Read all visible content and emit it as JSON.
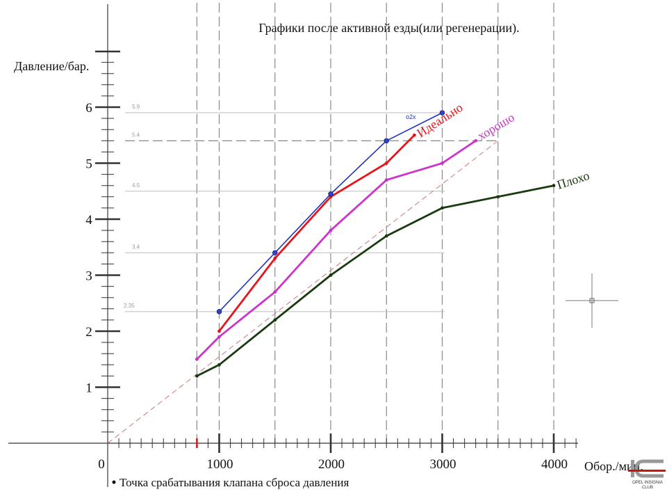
{
  "chart_data": {
    "type": "line",
    "title": "Графики после активной езды(или регенерации).",
    "ylabel": "Давление/бар.",
    "xlabel": "Обор./мин.",
    "xlim": [
      0,
      4000
    ],
    "ylim": [
      0,
      7
    ],
    "x_ticks": [
      {
        "value": 0,
        "label": "0"
      },
      {
        "value": 1000,
        "label": "1000"
      },
      {
        "value": 2000,
        "label": "2000"
      },
      {
        "value": 3000,
        "label": "3000"
      },
      {
        "value": 4000,
        "label": "4000"
      }
    ],
    "y_ticks": [
      {
        "value": 1,
        "label": "1"
      },
      {
        "value": 2,
        "label": "2"
      },
      {
        "value": 3,
        "label": "3"
      },
      {
        "value": 4,
        "label": "4"
      },
      {
        "value": 5,
        "label": "5"
      },
      {
        "value": 6,
        "label": "6"
      }
    ],
    "vertical_gridlines": [
      800,
      1000,
      1500,
      2000,
      2500,
      3000,
      3500,
      4000
    ],
    "reference_levels": [
      {
        "value": 5.9,
        "label": "5.9"
      },
      {
        "value": 5.4,
        "label": "5.4"
      },
      {
        "value": 4.5,
        "label": "4.5"
      },
      {
        "value": 3.4,
        "label": "3.4"
      },
      {
        "value": 2.35,
        "label": "2.35"
      }
    ],
    "diagonal_reference": {
      "from": [
        0,
        0
      ],
      "to": [
        3500,
        5.4
      ],
      "color": "#cc7777"
    },
    "series": [
      {
        "name": "Идеально",
        "color": "#e8141c",
        "x": [
          1000,
          1500,
          2000,
          2500,
          2750
        ],
        "y": [
          2.0,
          3.3,
          4.4,
          5.0,
          5.5
        ]
      },
      {
        "name": "хорошо",
        "color": "#cc33cc",
        "x": [
          800,
          1000,
          1500,
          2000,
          2500,
          3000,
          3300
        ],
        "y": [
          1.5,
          1.9,
          2.7,
          3.8,
          4.7,
          5.0,
          5.4
        ]
      },
      {
        "name": "Плохо",
        "color": "#1a3a10",
        "x": [
          800,
          1000,
          1500,
          2000,
          2500,
          3000,
          3500,
          4000
        ],
        "y": [
          1.2,
          1.4,
          2.2,
          3.0,
          3.7,
          4.2,
          4.4,
          4.6
        ]
      },
      {
        "name": "",
        "color": "#2233bb",
        "x": [
          1000,
          1500,
          2000,
          2500,
          3000
        ],
        "y": [
          2.35,
          3.4,
          4.45,
          5.4,
          5.9
        ]
      }
    ],
    "annotations": {
      "blue_marker": "o2x",
      "footnote": "Точка срабатывания клапана сброса давления"
    },
    "grid": true,
    "legend": "inline-labels"
  },
  "logo": {
    "text_line1": "OPEL INSIGNIA",
    "text_line2": "CLUB",
    "accent_color": "#cc1111"
  }
}
